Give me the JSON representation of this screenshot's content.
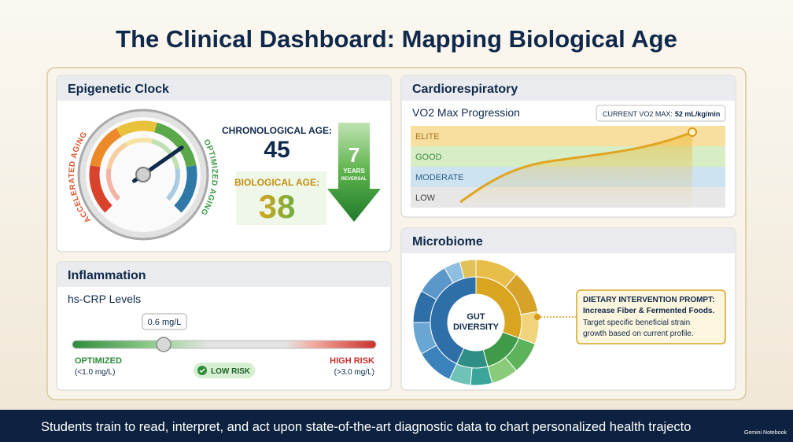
{
  "title": "The Clinical Dashboard: Mapping Biological Age",
  "epigenetic": {
    "header": "Epigenetic Clock",
    "gauge_left": "ACCELERATED AGING",
    "gauge_right": "OPTIMIZED AGING",
    "chronological_label": "CHRONOLOGICAL AGE:",
    "chronological_value": "45",
    "biological_label": "BIOLOGICAL AGE:",
    "biological_value": "38",
    "reversal_value": "7",
    "reversal_unit": "YEARS",
    "reversal_label": "REVERSAL"
  },
  "cardio": {
    "header": "Cardiorespiratory",
    "subtitle": "VO2 Max Progression",
    "callout_label": "CURRENT VO2 MAX:",
    "callout_value": "52 mL/kg/min",
    "bands": [
      "ELITE",
      "GOOD",
      "MODERATE",
      "LOW"
    ]
  },
  "inflammation": {
    "header": "Inflammation",
    "subtitle": "hs-CRP Levels",
    "marker": "0.6 mg/L",
    "left_label": "OPTIMIZED",
    "left_range": "(<1.0 mg/L)",
    "status": "LOW RISK",
    "right_label": "HIGH RISK",
    "right_range": "(>3.0 mg/L)"
  },
  "microbiome": {
    "header": "Microbiome",
    "center_line1": "GUT",
    "center_line2": "DIVERSITY",
    "prompt_title": "DIETARY INTERVENTION PROMPT:",
    "prompt_action": "Increase Fiber & Fermented Foods.",
    "prompt_line1": "Target specific beneficial strain",
    "prompt_line2": "growth based on current profile."
  },
  "footer": {
    "caption": "Students train to read, interpret, and act upon state-of-the-art diagnostic data to chart personalized health trajecto",
    "badge": "Gemini Notebook"
  }
}
